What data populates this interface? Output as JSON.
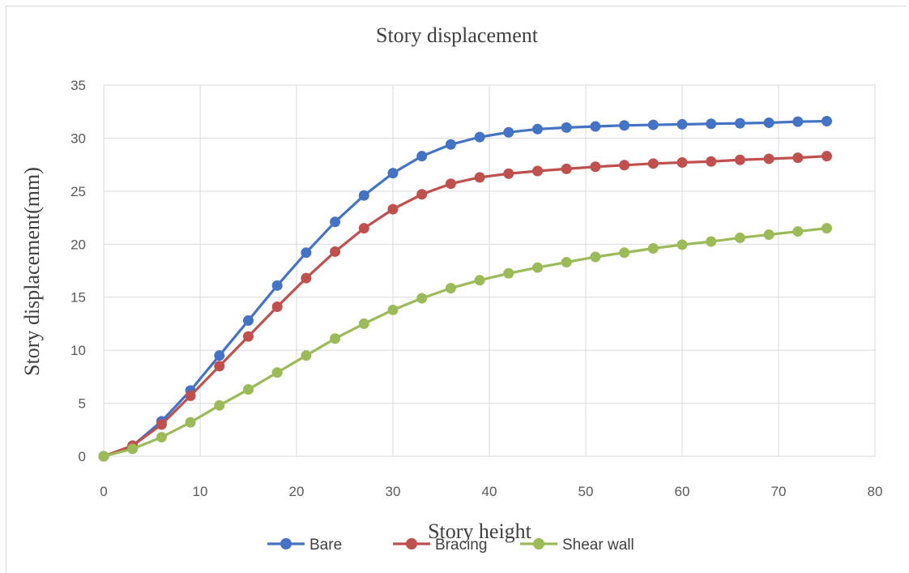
{
  "chart_data": {
    "type": "line",
    "title": "Story displacement",
    "xlabel": "Story height",
    "ylabel": "Story displacement(mm)",
    "xlim": [
      0,
      80
    ],
    "ylim": [
      0,
      35
    ],
    "x_ticks": [
      0,
      10,
      20,
      30,
      40,
      50,
      60,
      70,
      80
    ],
    "y_ticks": [
      0,
      5,
      10,
      15,
      20,
      25,
      30,
      35
    ],
    "grid": true,
    "legend_position": "bottom",
    "x": [
      0,
      3,
      6,
      9,
      12,
      15,
      18,
      21,
      24,
      27,
      30,
      33,
      36,
      39,
      42,
      45,
      48,
      51,
      54,
      57,
      60,
      63,
      66,
      69,
      72,
      75
    ],
    "series": [
      {
        "name": "Bare",
        "color": "#4472c4",
        "values": [
          0,
          1.0,
          3.3,
          6.2,
          9.5,
          12.8,
          16.1,
          19.2,
          22.1,
          24.6,
          26.7,
          28.3,
          29.4,
          30.1,
          30.55,
          30.85,
          31.0,
          31.1,
          31.2,
          31.25,
          31.3,
          31.35,
          31.4,
          31.45,
          31.55,
          31.6
        ]
      },
      {
        "name": "Bracing",
        "color": "#c0504d",
        "values": [
          0,
          1.0,
          3.0,
          5.7,
          8.5,
          11.3,
          14.1,
          16.8,
          19.3,
          21.5,
          23.3,
          24.7,
          25.7,
          26.3,
          26.65,
          26.9,
          27.1,
          27.3,
          27.45,
          27.6,
          27.7,
          27.8,
          27.95,
          28.05,
          28.15,
          28.3
        ]
      },
      {
        "name": "Shear wall",
        "color": "#9bbb59",
        "values": [
          0,
          0.7,
          1.8,
          3.2,
          4.8,
          6.3,
          7.9,
          9.5,
          11.1,
          12.5,
          13.8,
          14.9,
          15.85,
          16.6,
          17.25,
          17.8,
          18.3,
          18.8,
          19.2,
          19.6,
          19.95,
          20.25,
          20.6,
          20.9,
          21.2,
          21.5
        ]
      }
    ]
  }
}
